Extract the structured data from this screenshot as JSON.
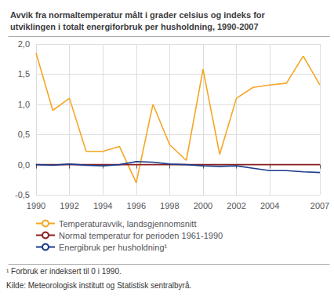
{
  "chart_data": {
    "type": "line",
    "title": "Avvik fra normaltemperatur målt i grader celsius og indeks for\nutviklingen i totalt energiforbruk per husholdning, 1990-2007",
    "x": [
      1990,
      1991,
      1992,
      1993,
      1994,
      1995,
      1996,
      1997,
      1998,
      1999,
      2000,
      2001,
      2002,
      2003,
      2004,
      2005,
      2006,
      2007
    ],
    "series": [
      {
        "name": "Temperaturavvik, landsgjennomsnitt",
        "color": "#f5a623",
        "values": [
          1.85,
          0.9,
          1.1,
          0.22,
          0.22,
          0.3,
          -0.3,
          1.0,
          0.33,
          0.07,
          1.58,
          0.17,
          1.1,
          1.28,
          1.32,
          1.35,
          1.8,
          1.32
        ]
      },
      {
        "name": "Normal temperatur for perioden 1961-1990",
        "color": "#8B2020",
        "values": [
          0.0,
          0.0,
          0.0,
          0.0,
          0.0,
          0.0,
          0.0,
          0.0,
          0.0,
          0.0,
          0.0,
          0.0,
          0.0,
          0.0,
          0.0,
          0.0,
          0.0,
          0.0
        ]
      },
      {
        "name": "Energibruk per husholdning¹",
        "color": "#1a3a8a",
        "values": [
          0.0,
          -0.01,
          0.01,
          -0.01,
          -0.02,
          0.0,
          0.05,
          0.04,
          0.01,
          0.0,
          -0.02,
          -0.03,
          -0.02,
          -0.06,
          -0.1,
          -0.1,
          -0.12,
          -0.13
        ]
      }
    ],
    "xlim": [
      1990,
      2007
    ],
    "xticks": [
      1990,
      1992,
      1994,
      1996,
      1998,
      2000,
      2002,
      2004,
      2007
    ],
    "ylim": [
      -0.5,
      2.0
    ],
    "yticks": [
      {
        "value": -0.5,
        "label": "-0,5"
      },
      {
        "value": 0.0,
        "label": "0,0"
      },
      {
        "value": 0.5,
        "label": "0,5"
      },
      {
        "value": 1.0,
        "label": "1,0"
      },
      {
        "value": 1.5,
        "label": "1,5"
      },
      {
        "value": 2.0,
        "label": "2,0"
      }
    ],
    "grid": true,
    "legend": "lower left",
    "annotations": [
      "¹ Forbruk er indeksert til 0 i 1990.",
      "Kilde: Meteorologisk institutt og Statistisk sentralbyrå."
    ]
  }
}
